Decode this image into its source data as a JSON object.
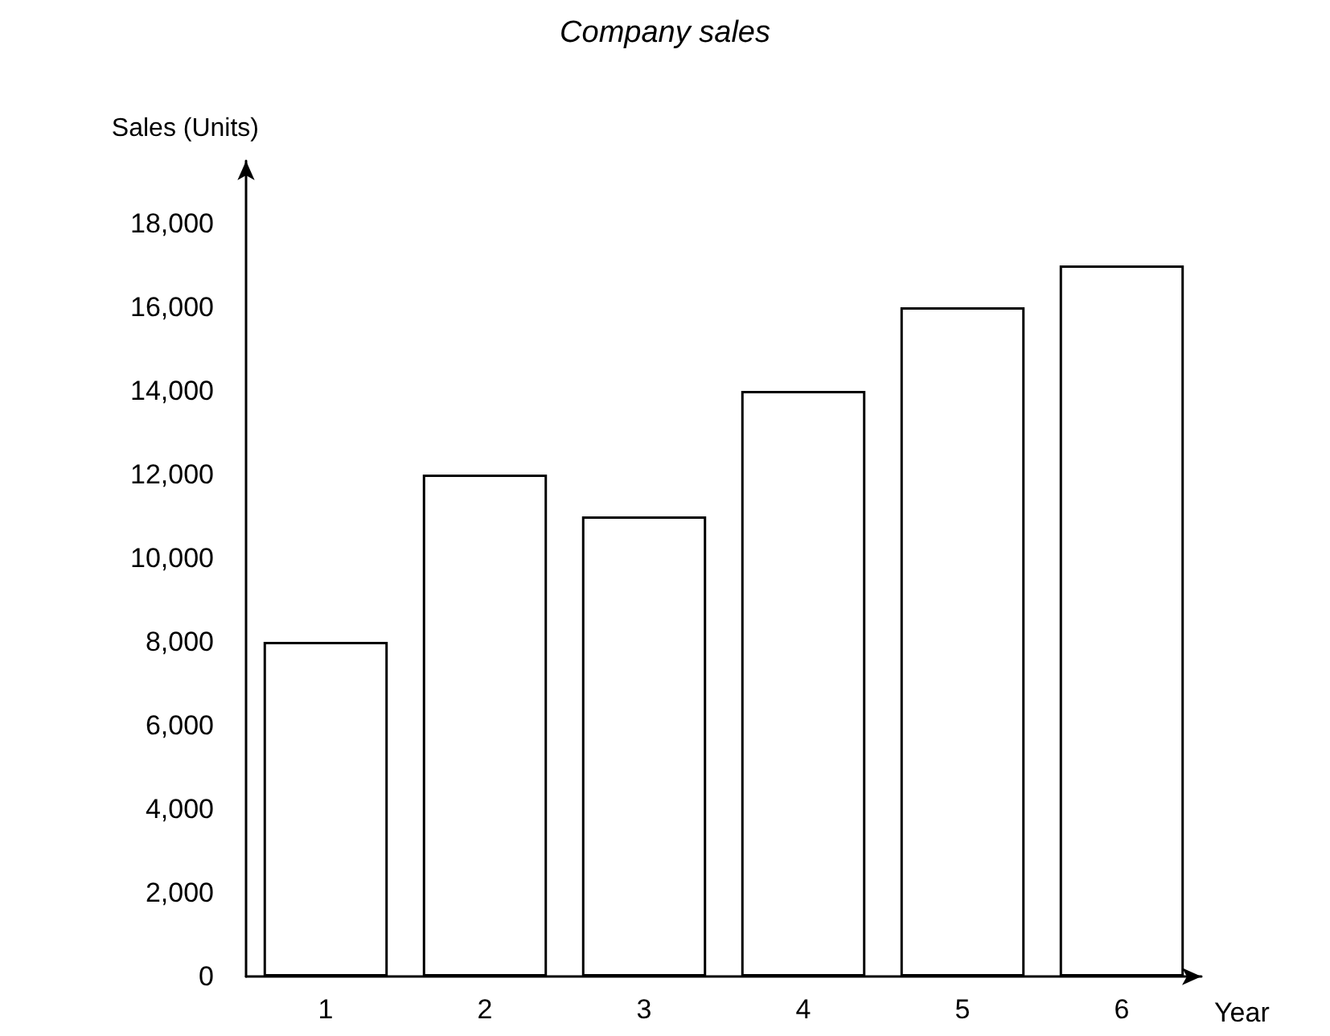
{
  "chart_data": {
    "type": "bar",
    "title": "Company sales",
    "xlabel": "Year",
    "ylabel": "Sales (Units)",
    "categories": [
      "1",
      "2",
      "3",
      "4",
      "5",
      "6"
    ],
    "values": [
      8000,
      12000,
      11000,
      14000,
      16000,
      17000
    ],
    "color": "#ffffff",
    "ylim": [
      0,
      19500
    ],
    "yticks": [
      {
        "value": 0,
        "label": "0"
      },
      {
        "value": 2000,
        "label": "2,000"
      },
      {
        "value": 4000,
        "label": "4,000"
      },
      {
        "value": 6000,
        "label": "6,000"
      },
      {
        "value": 8000,
        "label": "8,000"
      },
      {
        "value": 10000,
        "label": "10,000"
      },
      {
        "value": 12000,
        "label": "12,000"
      },
      {
        "value": 14000,
        "label": "14,000"
      },
      {
        "value": 16000,
        "label": "16,000"
      },
      {
        "value": 18000,
        "label": "18,000"
      }
    ],
    "grid": false
  }
}
